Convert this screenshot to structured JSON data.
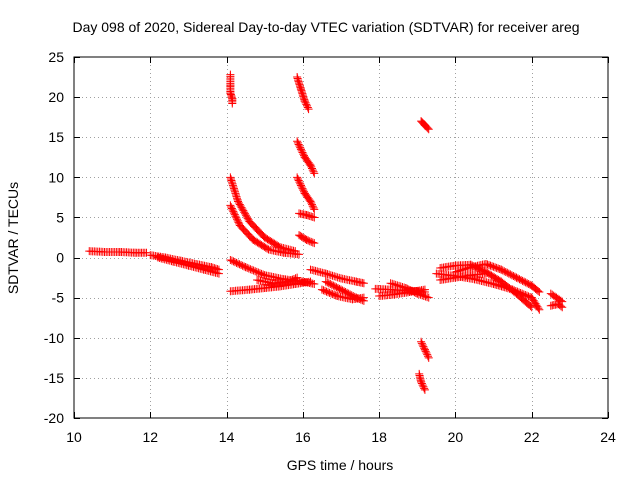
{
  "chart_data": {
    "type": "scatter",
    "title": "Day 098 of 2020, Sidereal Day-to-day VTEC variation (SDTVAR) for receiver areg",
    "xlabel": "GPS time / hours",
    "ylabel": "SDTVAR / TECUs",
    "xlim": [
      10,
      24
    ],
    "ylim": [
      -20,
      25
    ],
    "x_ticks": [
      10,
      12,
      14,
      16,
      18,
      20,
      22,
      24
    ],
    "y_ticks": [
      -20,
      -15,
      -10,
      -5,
      0,
      5,
      10,
      15,
      20,
      25
    ],
    "grid": true,
    "marker": "+",
    "series": [
      {
        "name": "SDTVAR",
        "color": "#ff0000",
        "segments": [
          {
            "x": [
              10.4,
              10.8,
              11.2,
              11.6,
              11.9
            ],
            "y": [
              0.8,
              0.7,
              0.7,
              0.6,
              0.6
            ]
          },
          {
            "x": [
              12.0,
              12.4,
              12.8,
              13.2,
              13.6,
              13.8
            ],
            "y": [
              0.3,
              0.0,
              -0.4,
              -0.8,
              -1.2,
              -1.5
            ]
          },
          {
            "x": [
              12.2,
              12.6,
              13.0,
              13.4,
              13.8
            ],
            "y": [
              0.0,
              -0.5,
              -1.0,
              -1.5,
              -2.0
            ]
          },
          {
            "x": [
              14.1,
              14.1,
              14.1,
              14.15,
              14.15
            ],
            "y": [
              22.8,
              21.5,
              20.5,
              19.8,
              19.2
            ]
          },
          {
            "x": [
              14.1,
              14.3,
              14.6,
              15.0,
              15.4,
              15.8
            ],
            "y": [
              10.0,
              7.0,
              4.5,
              2.5,
              1.3,
              0.8
            ]
          },
          {
            "x": [
              14.1,
              14.35,
              14.7,
              15.1,
              15.5,
              15.9
            ],
            "y": [
              6.5,
              4.0,
              2.2,
              1.0,
              0.6,
              0.4
            ]
          },
          {
            "x": [
              14.1,
              14.5,
              15.0,
              15.5,
              16.0,
              16.3
            ],
            "y": [
              -0.3,
              -1.2,
              -2.2,
              -2.7,
              -3.0,
              -3.3
            ]
          },
          {
            "x": [
              14.1,
              14.6,
              15.0,
              15.4,
              15.8,
              16.2
            ],
            "y": [
              -4.2,
              -4.0,
              -3.8,
              -3.6,
              -3.3,
              -3.0
            ]
          },
          {
            "x": [
              14.8,
              15.2,
              15.6,
              15.85
            ],
            "y": [
              -2.8,
              -3.2,
              -3.0,
              -2.5
            ]
          },
          {
            "x": [
              15.85,
              15.95,
              16.05,
              16.15
            ],
            "y": [
              22.5,
              21.0,
              19.5,
              18.5
            ]
          },
          {
            "x": [
              15.85,
              15.95,
              16.05,
              16.2,
              16.3
            ],
            "y": [
              14.5,
              13.5,
              12.5,
              11.5,
              10.5
            ]
          },
          {
            "x": [
              15.85,
              15.95,
              16.05,
              16.2,
              16.3
            ],
            "y": [
              10.0,
              9.0,
              8.0,
              7.0,
              6.0
            ]
          },
          {
            "x": [
              15.9,
              16.1,
              16.3
            ],
            "y": [
              5.5,
              5.3,
              5.0
            ]
          },
          {
            "x": [
              15.9,
              16.1,
              16.3
            ],
            "y": [
              2.8,
              2.2,
              1.8
            ]
          },
          {
            "x": [
              16.2,
              16.6,
              17.0,
              17.4,
              17.6
            ],
            "y": [
              -1.5,
              -2.0,
              -2.6,
              -3.0,
              -3.2
            ]
          },
          {
            "x": [
              16.6,
              17.0,
              17.4,
              17.6
            ],
            "y": [
              -3.0,
              -4.0,
              -5.0,
              -5.4
            ]
          },
          {
            "x": [
              16.5,
              16.9,
              17.3,
              17.6
            ],
            "y": [
              -4.0,
              -4.8,
              -5.2,
              -5.0
            ]
          },
          {
            "x": [
              17.9,
              18.3,
              18.7,
              19.0,
              19.2
            ],
            "y": [
              -3.9,
              -4.0,
              -4.1,
              -4.2,
              -4.3
            ]
          },
          {
            "x": [
              18.0,
              18.4,
              18.8,
              19.2
            ],
            "y": [
              -4.8,
              -4.6,
              -4.3,
              -4.0
            ]
          },
          {
            "x": [
              18.3,
              18.7,
              19.0,
              19.3
            ],
            "y": [
              -3.2,
              -3.8,
              -4.5,
              -5.0
            ]
          },
          {
            "x": [
              19.1,
              19.2,
              19.3
            ],
            "y": [
              17.0,
              16.5,
              16.0
            ]
          },
          {
            "x": [
              19.1,
              19.2,
              19.3
            ],
            "y": [
              -10.5,
              -11.5,
              -12.5
            ]
          },
          {
            "x": [
              19.05,
              19.1,
              19.2
            ],
            "y": [
              -14.5,
              -15.5,
              -16.5
            ]
          },
          {
            "x": [
              19.5,
              20.0,
              20.5,
              21.0,
              21.5,
              22.0,
              22.2
            ],
            "y": [
              -2.0,
              -2.3,
              -2.7,
              -3.3,
              -4.0,
              -5.0,
              -6.5
            ]
          },
          {
            "x": [
              19.6,
              20.0,
              20.4,
              20.8,
              21.2,
              21.6,
              22.0
            ],
            "y": [
              -1.3,
              -1.0,
              -0.9,
              -1.8,
              -3.0,
              -4.5,
              -6.2
            ]
          },
          {
            "x": [
              20.0,
              20.4,
              20.8,
              21.2,
              21.6,
              22.0,
              22.2
            ],
            "y": [
              -1.8,
              -1.2,
              -0.8,
              -1.5,
              -2.5,
              -3.5,
              -4.3
            ]
          },
          {
            "x": [
              19.6,
              20.0,
              20.4,
              20.8
            ],
            "y": [
              -2.8,
              -2.5,
              -2.2,
              -2.0
            ]
          },
          {
            "x": [
              22.5,
              22.65,
              22.8
            ],
            "y": [
              -4.5,
              -5.0,
              -5.5
            ]
          },
          {
            "x": [
              22.5,
              22.7,
              22.8
            ],
            "y": [
              -6.0,
              -5.8,
              -6.2
            ]
          }
        ]
      }
    ]
  }
}
